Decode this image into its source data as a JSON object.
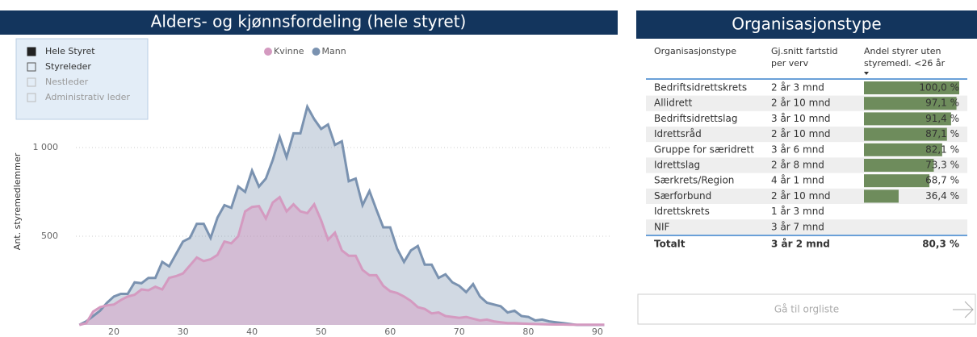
{
  "chart_data": {
    "type": "area",
    "title": "Alders- og kjønnsfordeling (hele styret)",
    "y_label": "Ant. styremedlemmer",
    "slicer": [
      "Hele Styret",
      "Styreleder",
      "Nestleder",
      "Administrativ leder"
    ],
    "legend": "top",
    "x": [
      15,
      16,
      17,
      18,
      19,
      20,
      21,
      22,
      23,
      24,
      25,
      26,
      27,
      28,
      29,
      30,
      31,
      32,
      33,
      34,
      35,
      36,
      37,
      38,
      39,
      40,
      41,
      42,
      43,
      44,
      45,
      46,
      47,
      48,
      49,
      50,
      51,
      52,
      53,
      54,
      55,
      56,
      57,
      58,
      59,
      60,
      61,
      62,
      63,
      64,
      65,
      66,
      67,
      68,
      69,
      70,
      71,
      72,
      73,
      74,
      75,
      76,
      77,
      78,
      79,
      80,
      81,
      82,
      83,
      84,
      85,
      86,
      87,
      88,
      89,
      90,
      91
    ],
    "series": [
      {
        "name": "Kvinne",
        "color": "#d49ac0",
        "values": [
          0,
          10,
          75,
          100,
          110,
          115,
          140,
          160,
          170,
          200,
          195,
          215,
          200,
          265,
          275,
          290,
          335,
          380,
          360,
          370,
          395,
          470,
          460,
          500,
          640,
          665,
          670,
          600,
          690,
          720,
          640,
          680,
          640,
          630,
          680,
          590,
          480,
          520,
          420,
          390,
          390,
          310,
          280,
          280,
          220,
          190,
          180,
          160,
          135,
          100,
          90,
          65,
          70,
          50,
          45,
          40,
          45,
          35,
          25,
          30,
          20,
          15,
          10,
          10,
          8,
          6,
          5,
          4,
          3,
          2,
          2,
          1,
          1,
          1,
          1,
          1,
          1
        ]
      },
      {
        "name": "Mann",
        "color": "#7a92b0",
        "values": [
          0,
          20,
          50,
          80,
          125,
          160,
          175,
          175,
          240,
          235,
          265,
          265,
          355,
          330,
          400,
          470,
          490,
          570,
          570,
          490,
          605,
          675,
          660,
          780,
          750,
          870,
          780,
          825,
          930,
          1060,
          945,
          1080,
          1080,
          1230,
          1160,
          1105,
          1130,
          1015,
          1035,
          810,
          825,
          675,
          755,
          650,
          550,
          550,
          430,
          355,
          420,
          445,
          340,
          340,
          265,
          285,
          240,
          220,
          185,
          230,
          160,
          125,
          115,
          105,
          70,
          80,
          50,
          45,
          25,
          30,
          20,
          15,
          10,
          5,
          0,
          0,
          0,
          0,
          0
        ]
      }
    ],
    "xlim": [
      14.5,
      92
    ],
    "xticks": [
      20,
      30,
      40,
      50,
      60,
      70,
      80,
      90
    ],
    "ylim": [
      0,
      1400
    ],
    "yticks": [
      {
        "value": 500,
        "label": "500"
      },
      {
        "value": 1000,
        "label": "1 000"
      }
    ],
    "grid": true
  },
  "panel": {
    "title": "Organisasjonstype",
    "headers": [
      "Organisasjonstype",
      "Gj.snitt fartstid per verv",
      "Andel styrer uten styremedl. <26 år"
    ],
    "rows": [
      {
        "name": "Bedriftsidrettskrets",
        "duration": "2 år 3 mnd",
        "share": {
          "value": 100.0,
          "label": "100,0 %"
        }
      },
      {
        "name": "Allidrett",
        "duration": "2 år 10 mnd",
        "share": {
          "value": 97.1,
          "label": "97,1 %"
        }
      },
      {
        "name": "Bedriftsidrettslag",
        "duration": "3 år 10 mnd",
        "share": {
          "value": 91.4,
          "label": "91,4 %"
        }
      },
      {
        "name": "Idrettsråd",
        "duration": "2 år 10 mnd",
        "share": {
          "value": 87.1,
          "label": "87,1 %"
        }
      },
      {
        "name": "Gruppe for særidrett",
        "duration": "3 år 6 mnd",
        "share": {
          "value": 82.1,
          "label": "82,1 %"
        }
      },
      {
        "name": "Idrettslag",
        "duration": "2 år 8 mnd",
        "share": {
          "value": 73.3,
          "label": "73,3 %"
        }
      },
      {
        "name": "Særkrets/Region",
        "duration": "4 år 1 mnd",
        "share": {
          "value": 68.7,
          "label": "68,7 %"
        }
      },
      {
        "name": "Særforbund",
        "duration": "2 år 10 mnd",
        "share": {
          "value": 36.4,
          "label": "36,4 %"
        }
      },
      {
        "name": "Idrettskrets",
        "duration": "1 år 3 mnd",
        "share": null
      },
      {
        "name": "NIF",
        "duration": "3 år 7 mnd",
        "share": null
      }
    ],
    "total": {
      "name": "Totalt",
      "duration": "3 år 2 mnd",
      "share": {
        "value": 80.3,
        "label": "80,3 %"
      }
    },
    "button": "Gå til orgliste"
  }
}
